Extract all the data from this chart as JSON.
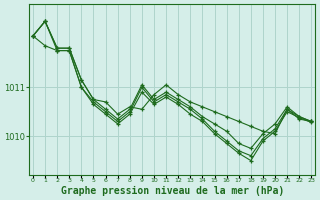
{
  "title": "Graphe pression niveau de la mer (hPa)",
  "bg_color": "#d5eee9",
  "grid_color": "#aed4cc",
  "line_color": "#1e6b1e",
  "x_ticks": [
    0,
    1,
    2,
    3,
    4,
    5,
    6,
    7,
    8,
    9,
    10,
    11,
    12,
    13,
    14,
    15,
    16,
    17,
    18,
    19,
    20,
    21,
    22,
    23
  ],
  "y_ticks": [
    1010,
    1011
  ],
  "ylim": [
    1009.2,
    1012.7
  ],
  "xlim": [
    -0.3,
    23.3
  ],
  "series": [
    [
      1012.05,
      1012.35,
      1011.8,
      1011.8,
      1011.15,
      1010.75,
      1010.7,
      1010.45,
      1010.6,
      1010.55,
      1010.85,
      1011.05,
      1010.85,
      1010.7,
      1010.6,
      1010.5,
      1010.4,
      1010.3,
      1010.2,
      1010.1,
      1010.05,
      1010.55,
      1010.35,
      1010.3
    ],
    [
      1012.05,
      1012.35,
      1011.8,
      1011.8,
      1011.15,
      1010.75,
      1010.55,
      1010.35,
      1010.55,
      1011.05,
      1010.75,
      1010.9,
      1010.75,
      1010.6,
      1010.4,
      1010.25,
      1010.1,
      1009.85,
      1009.75,
      1010.05,
      1010.25,
      1010.6,
      1010.4,
      1010.3
    ],
    [
      1012.05,
      1012.35,
      1011.75,
      1011.75,
      1011.0,
      1010.7,
      1010.5,
      1010.3,
      1010.5,
      1011.0,
      1010.7,
      1010.85,
      1010.7,
      1010.55,
      1010.35,
      1010.1,
      1009.9,
      1009.7,
      1009.6,
      1009.95,
      1010.15,
      1010.55,
      1010.4,
      1010.3
    ],
    [
      1012.05,
      1011.85,
      1011.75,
      1011.75,
      1011.0,
      1010.65,
      1010.45,
      1010.25,
      1010.45,
      1010.9,
      1010.65,
      1010.8,
      1010.65,
      1010.45,
      1010.3,
      1010.05,
      1009.85,
      1009.65,
      1009.5,
      1009.9,
      1010.1,
      1010.5,
      1010.38,
      1010.28
    ]
  ]
}
